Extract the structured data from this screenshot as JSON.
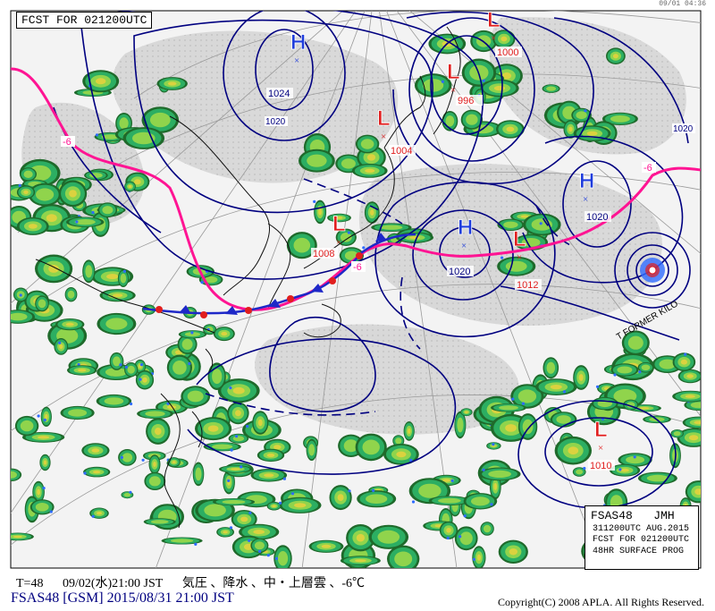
{
  "header": {
    "title": "FCST FOR 021200UTC",
    "stamp": "09/01 04:36"
  },
  "info_box": {
    "code": "FSAS48",
    "agency": "JMH",
    "base_time": "311200UTC AUG.2015",
    "valid": "FCST FOR 021200UTC",
    "product": "48HR SURFACE PROG"
  },
  "footer": {
    "t": "T=48",
    "valid_local": "09/02(水)21:00 JST",
    "elements": "気圧 、降水 、中・上層雲 、-6℃",
    "product_line": "FSAS48 [GSM] 2015/08/31 21:00 JST",
    "copyright": "Copyright(C) 2008 APLA. All Rights Reserved."
  },
  "map": {
    "pressure_centers": [
      {
        "type": "H",
        "value": "1024"
      },
      {
        "type": "L",
        "value": "1000"
      },
      {
        "type": "L",
        "value": "996"
      },
      {
        "type": "L",
        "value": "1004"
      },
      {
        "type": "H",
        "value": "1020"
      },
      {
        "type": "L",
        "value": "1008"
      },
      {
        "type": "H",
        "value": "1020"
      },
      {
        "type": "L",
        "value": "1012"
      },
      {
        "type": "L",
        "value": "1010"
      }
    ],
    "isobar_labels": [
      "1020",
      "1020"
    ],
    "temp_line_labels": [
      "-6",
      "-6",
      "-6"
    ],
    "storm_label": "T FORMER KILO",
    "colors": {
      "isobar": "#000080",
      "high": "#1e3cdc",
      "low": "#e11e1e",
      "temp_line": "#ff1493",
      "front": "#1e28c8",
      "precip_light": "#2fbf71",
      "precip_mid": "#9bd84a",
      "precip_heavy": "#e3d23e",
      "precip_edge": "#1f6a2b",
      "rain_blue": "#2f6bff"
    }
  }
}
